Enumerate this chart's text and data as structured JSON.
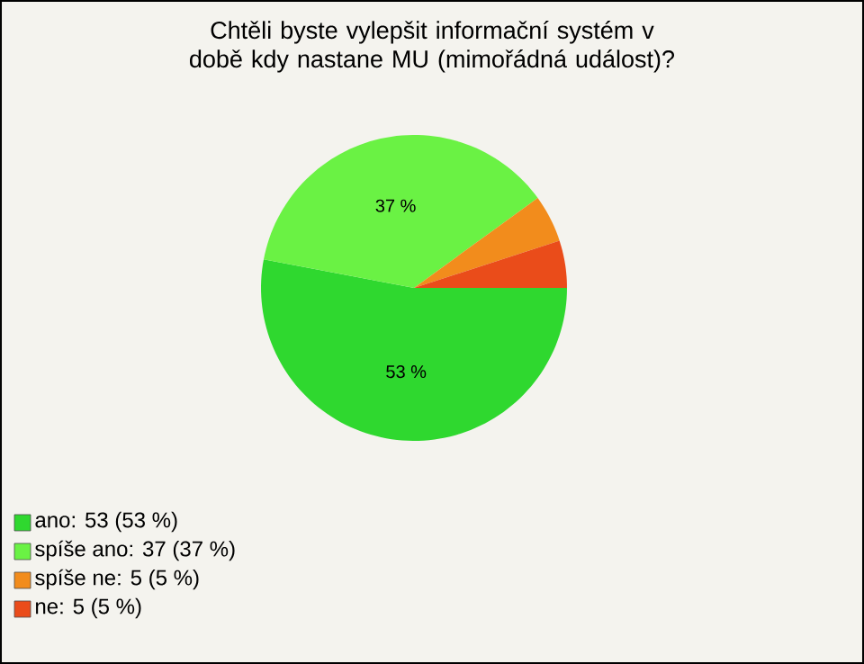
{
  "chart_data": {
    "type": "pie",
    "title": "Chtěli byste vylepšit informační systém v době kdy nastane MU (mimořádná událost)?",
    "categories": [
      "ano: 53 (53 %)",
      "spíše ano: 37 (37 %)",
      "spíše ne: 5 (5 %)",
      "ne: 5 (5 %)"
    ],
    "values": [
      53,
      37,
      5,
      5
    ],
    "colors": [
      "#2fd82f",
      "#6af244",
      "#f28c1c",
      "#ea4c1a"
    ],
    "value_labels": [
      "53 %",
      "37 %",
      null,
      null
    ],
    "legend": "bottom left"
  }
}
